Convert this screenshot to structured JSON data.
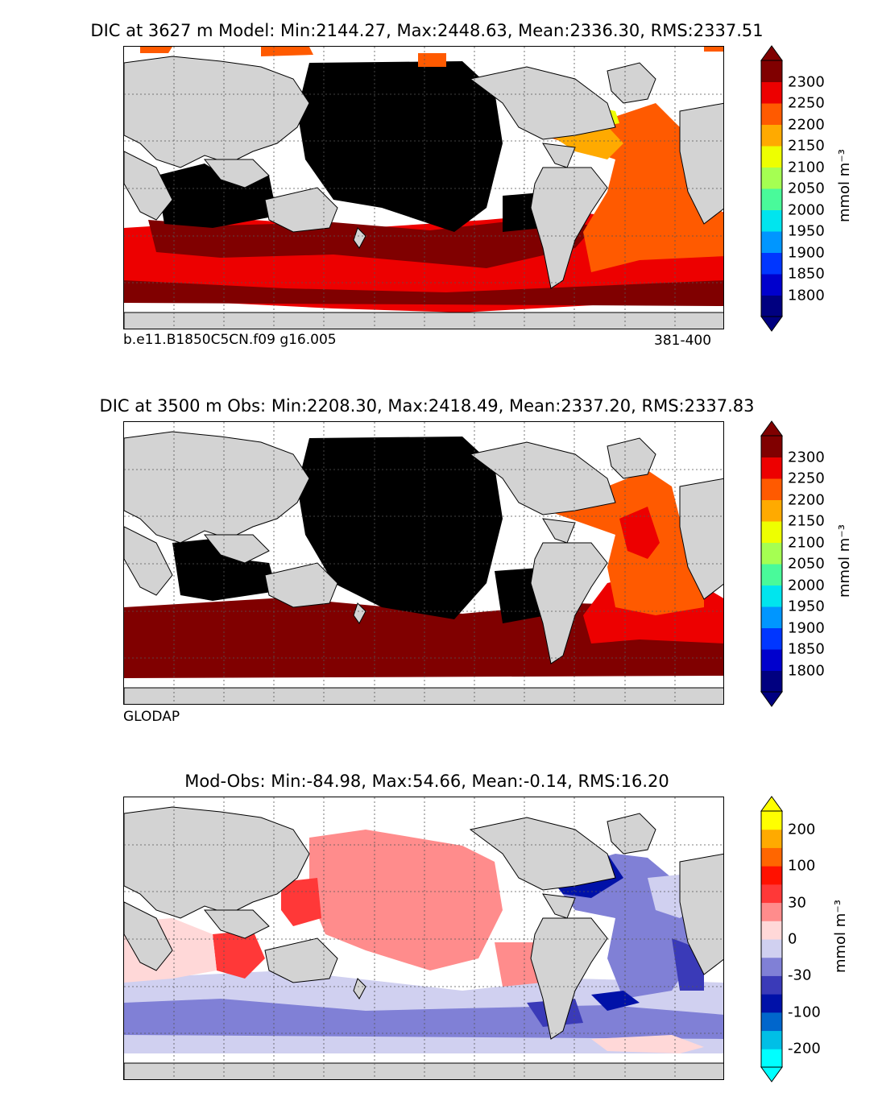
{
  "panels": [
    {
      "title": "DIC at 3627 m Model: Min:2144.27, Max:2448.63, Mean:2336.30, RMS:2337.51",
      "label_left": "b.e11.B1850C5CN.f09 g16.005",
      "label_right": "381-400",
      "colorbar": {
        "colors": [
          "#000080",
          "#0000cd",
          "#0036ff",
          "#0096ff",
          "#00e5ee",
          "#49fa9a",
          "#a5ff52",
          "#eeff00",
          "#ffaa00",
          "#ff5a00",
          "#ed0000",
          "#800000"
        ],
        "ticks": [
          "1800",
          "1850",
          "1900",
          "1950",
          "2000",
          "2050",
          "2100",
          "2150",
          "2200",
          "2250",
          "2300"
        ],
        "under": "#000080",
        "over": "#800000",
        "unit": "mmol m⁻³"
      }
    },
    {
      "title": "DIC at 3500 m Obs: Min:2208.30, Max:2418.49, Mean:2337.20, RMS:2337.83",
      "label_left": "GLODAP",
      "label_right": "",
      "colorbar": {
        "colors": [
          "#000080",
          "#0000cd",
          "#0036ff",
          "#0096ff",
          "#00e5ee",
          "#49fa9a",
          "#a5ff52",
          "#eeff00",
          "#ffaa00",
          "#ff5a00",
          "#ed0000",
          "#800000"
        ],
        "ticks": [
          "1800",
          "1850",
          "1900",
          "1950",
          "2000",
          "2050",
          "2100",
          "2150",
          "2200",
          "2250",
          "2300"
        ],
        "under": "#000080",
        "over": "#800000",
        "unit": "mmol m⁻³"
      }
    },
    {
      "title": "Mod-Obs: Min:-84.98, Max:54.66, Mean:-0.14, RMS:16.20",
      "label_left": "",
      "label_right": "",
      "colorbar": {
        "colors": [
          "#00ffff",
          "#00bfe6",
          "#0066cc",
          "#0011a8",
          "#3a3ab8",
          "#8080d6",
          "#d0d0f0",
          "#ffd8d8",
          "#ff8c8c",
          "#ff3838",
          "#ff1100",
          "#ff6600",
          "#ffaa00",
          "#ffff00"
        ],
        "ticks": [
          "-200",
          "-100",
          "-30",
          "0",
          "30",
          "100",
          "200"
        ],
        "under": "#00ffff",
        "over": "#ffff00",
        "unit": "mmol m⁻³"
      }
    }
  ]
}
